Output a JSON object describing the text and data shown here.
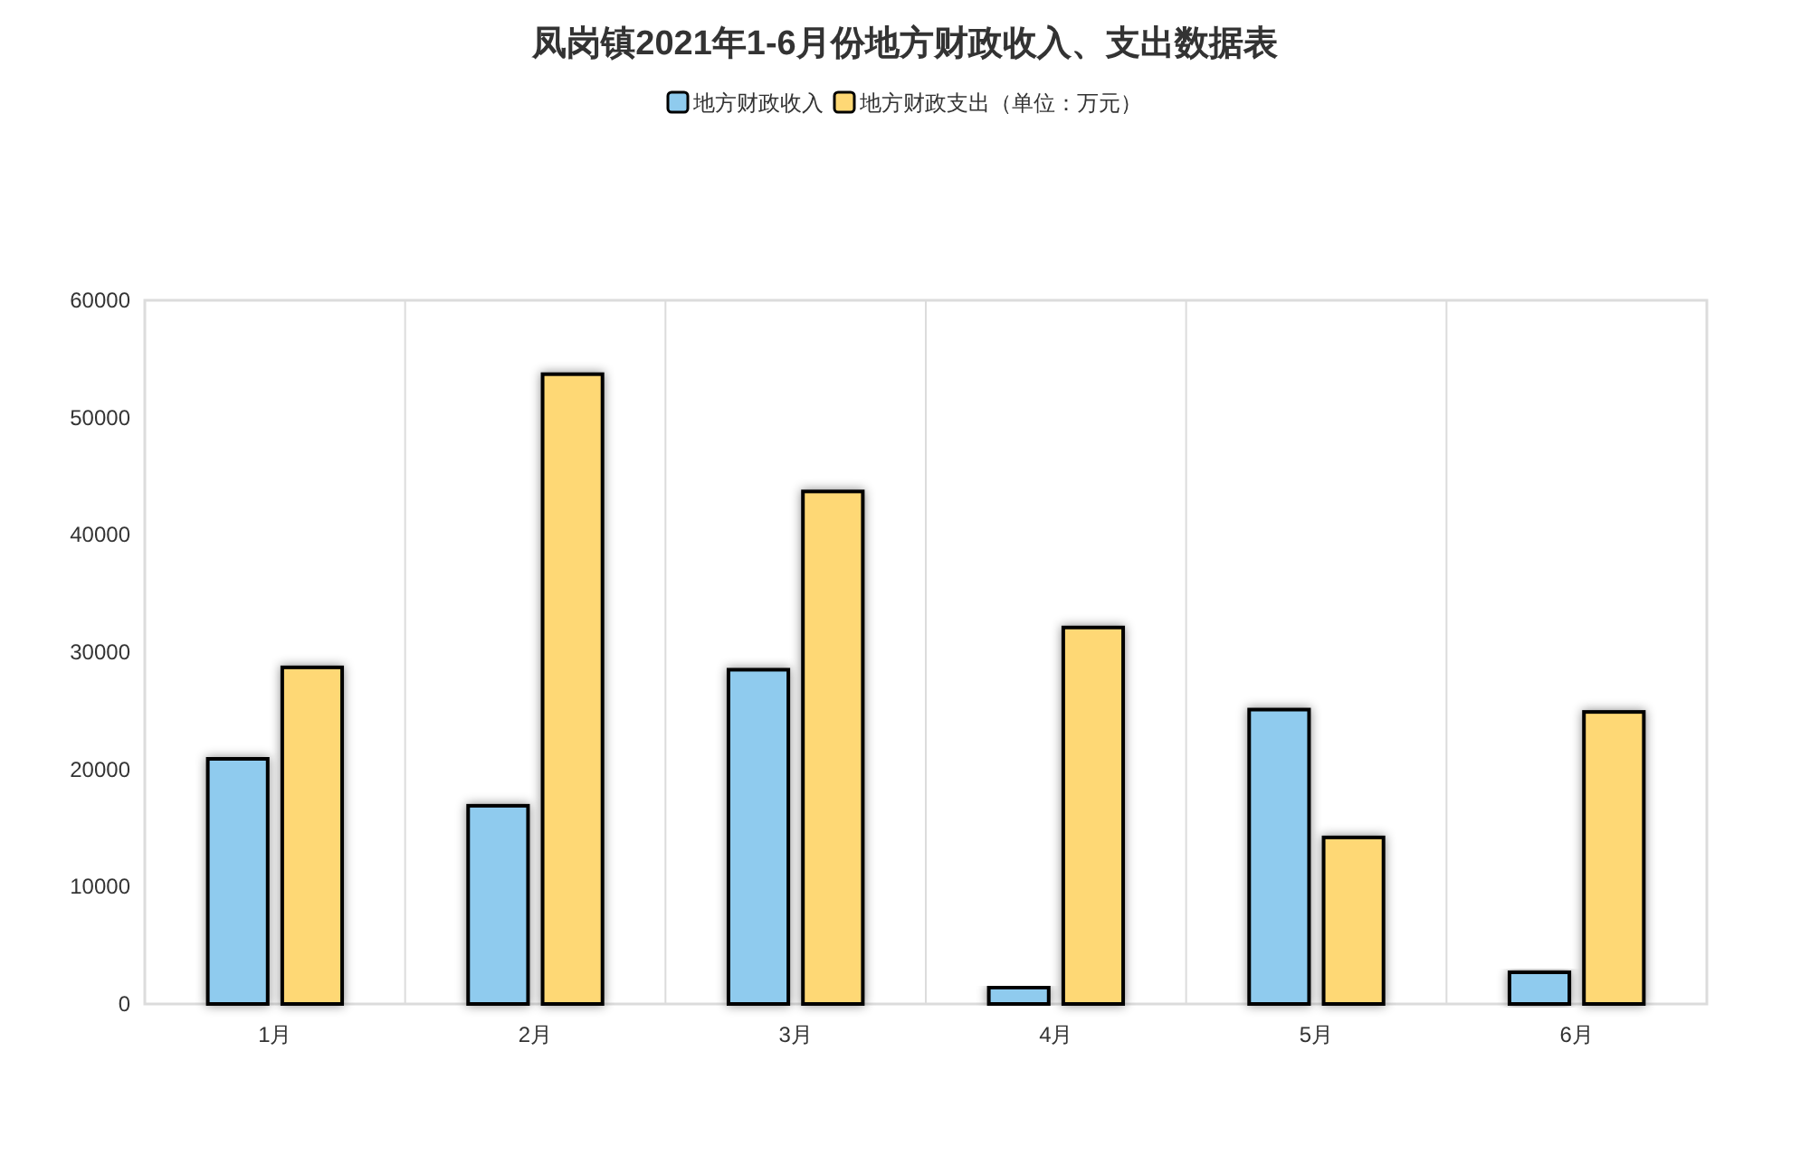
{
  "chart_data": {
    "type": "bar",
    "title": "凤岗镇2021年1-6月份地方财政收入、支出数据表",
    "categories": [
      "1月",
      "2月",
      "3月",
      "4月",
      "5月",
      "6月"
    ],
    "series": [
      {
        "name": "地方财政收入",
        "color": "#8fcbee",
        "values": [
          20900,
          16900,
          28500,
          1400,
          25100,
          2700
        ]
      },
      {
        "name": "地方财政支出（单位：万元）",
        "color": "#fed875",
        "values": [
          28700,
          53700,
          43700,
          32100,
          14200,
          24900
        ]
      }
    ],
    "ylim": [
      0,
      60000
    ],
    "yticks": [
      0,
      10000,
      20000,
      30000,
      40000,
      50000,
      60000
    ],
    "grid": "x",
    "legend": "top"
  }
}
